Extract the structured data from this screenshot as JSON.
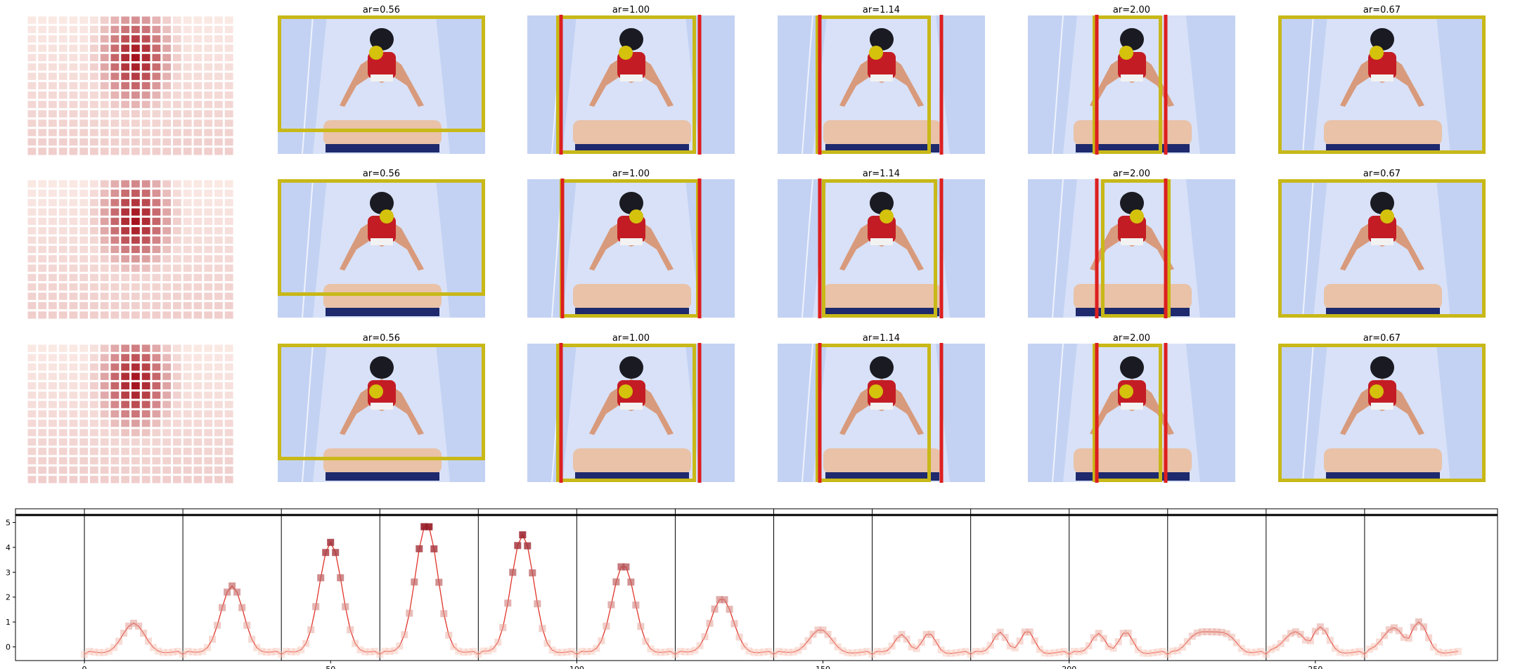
{
  "grid": {
    "rows": [
      {
        "heatmap_focus": "center",
        "panels": [
          {
            "title": "ar=0.56",
            "frame_color": "#c8b818",
            "has_red_bars": false
          },
          {
            "title": "ar=1.00",
            "frame_color": "#c8b818",
            "has_red_bars": true
          },
          {
            "title": "ar=1.14",
            "frame_color": "#c8b818",
            "has_red_bars": true
          },
          {
            "title": "ar=2.00",
            "frame_color": "#c8b818",
            "has_red_bars": true
          },
          {
            "title": "ar=0.67",
            "frame_color": "#c8b818",
            "has_red_bars": false
          }
        ]
      },
      {
        "heatmap_focus": "center",
        "panels": [
          {
            "title": "ar=0.56",
            "frame_color": "#c8b818",
            "has_red_bars": false
          },
          {
            "title": "ar=1.00",
            "frame_color": "#c8b818",
            "has_red_bars": true
          },
          {
            "title": "ar=1.14",
            "frame_color": "#c8b818",
            "has_red_bars": true
          },
          {
            "title": "ar=2.00",
            "frame_color": "#c8b818",
            "has_red_bars": true
          },
          {
            "title": "ar=0.67",
            "frame_color": "#c8b818",
            "has_red_bars": false
          }
        ]
      },
      {
        "heatmap_focus": "center",
        "panels": [
          {
            "title": "ar=0.56",
            "frame_color": "#c8b818",
            "has_red_bars": false
          },
          {
            "title": "ar=1.00",
            "frame_color": "#c8b818",
            "has_red_bars": true
          },
          {
            "title": "ar=1.14",
            "frame_color": "#c8b818",
            "has_red_bars": true
          },
          {
            "title": "ar=2.00",
            "frame_color": "#c8b818",
            "has_red_bars": true
          },
          {
            "title": "ar=0.67",
            "frame_color": "#c8b818",
            "has_red_bars": false
          }
        ]
      }
    ],
    "colors": {
      "frame": "#c8b818",
      "red_bar": "#dd1f1f",
      "dot": "#d4c20c",
      "sky": "#c3d2f3",
      "vault_top": "#e9c2a8",
      "vault_base": "#1e2a6d"
    }
  },
  "chart_data": {
    "type": "line",
    "x_ticks": [
      0,
      50,
      100,
      150,
      200,
      250
    ],
    "y_ticks": [
      0,
      1,
      2,
      3,
      4,
      5
    ],
    "xlim": [
      -14,
      287
    ],
    "ylim": [
      -0.55,
      5.55
    ],
    "hline_y": 5.3,
    "vlines": [
      0,
      20,
      40,
      60,
      80,
      100,
      120,
      140,
      160,
      180,
      200,
      220,
      240,
      260
    ],
    "line_color": "#e0342a",
    "segments": [
      {
        "center": 10,
        "peak": 1.3,
        "shape": "single"
      },
      {
        "center": 30,
        "peak": 2.8,
        "shape": "single"
      },
      {
        "center": 50,
        "peak": 4.55,
        "shape": "single"
      },
      {
        "center": 69.5,
        "peak": 5.3,
        "shape": "single"
      },
      {
        "center": 89,
        "peak": 4.85,
        "shape": "single"
      },
      {
        "center": 109.5,
        "peak": 3.65,
        "shape": "single"
      },
      {
        "center": 129.5,
        "peak": 2.3,
        "shape": "single"
      },
      {
        "center": 149.5,
        "peak": 1.05,
        "shape": "single"
      },
      {
        "center": 169,
        "peak": 0.9,
        "shape": "double"
      },
      {
        "center": 189,
        "peak": 1.0,
        "shape": "double"
      },
      {
        "center": 209,
        "peak": 0.95,
        "shape": "double"
      },
      {
        "center": 229,
        "peak": 0.95,
        "shape": "flat"
      },
      {
        "center": 249,
        "peak": 1.15,
        "shape": "wide"
      },
      {
        "center": 269,
        "peak": 1.35,
        "shape": "wide"
      }
    ]
  }
}
